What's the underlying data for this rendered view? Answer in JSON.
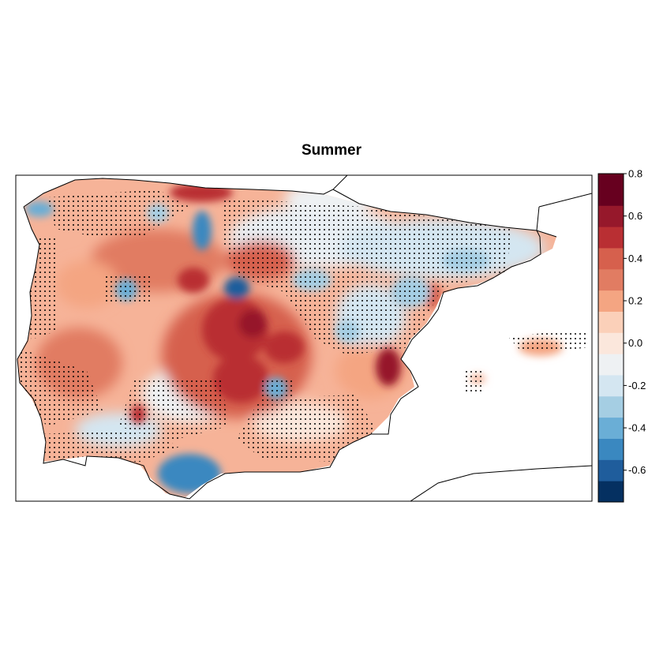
{
  "title": "Summer",
  "legend": {
    "colors": [
      "#053061",
      "#1f5d9c",
      "#3a88c0",
      "#6aaed6",
      "#a5cee3",
      "#d4e6f1",
      "#eef1f3",
      "#fbe7dc",
      "#fbd0b9",
      "#f4a582",
      "#e17c62",
      "#d6604d",
      "#b92f33",
      "#96182b",
      "#67001f"
    ],
    "breaks": [
      -0.75,
      -0.65,
      -0.55,
      -0.45,
      -0.35,
      -0.25,
      -0.15,
      -0.05,
      0.05,
      0.15,
      0.25,
      0.35,
      0.45,
      0.55,
      0.65,
      0.8
    ],
    "tick_labels": [
      "0.8",
      "0.6",
      "0.4",
      "0.2",
      "0.0",
      "-0.2",
      "-0.4",
      "-0.6"
    ],
    "tick_values": [
      0.8,
      0.6,
      0.4,
      0.2,
      0.0,
      -0.2,
      -0.4,
      -0.6
    ]
  }
}
